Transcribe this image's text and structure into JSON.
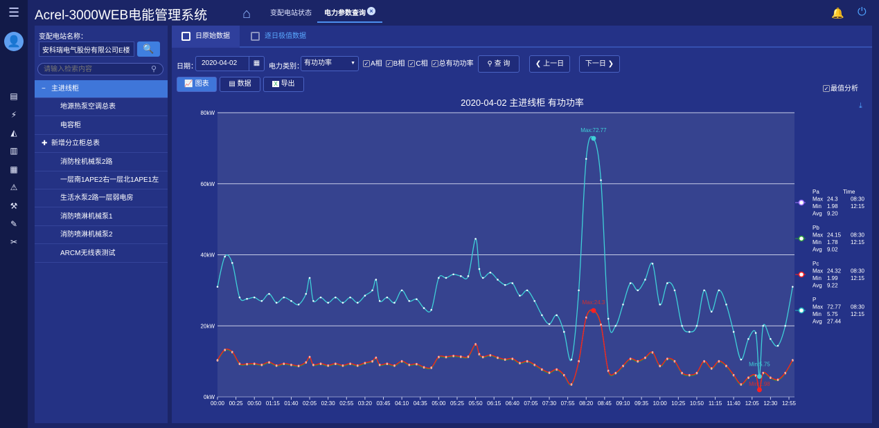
{
  "app": {
    "title": "Acrel-3000WEB电能管理系统",
    "menu_icon": "hamburger-icon"
  },
  "top_tabs": [
    {
      "label": "变配电站状态"
    },
    {
      "label": "电力参数查询",
      "active": true
    }
  ],
  "left": {
    "station_label": "变配电站名称：",
    "station_value": "安科瑞电气股份有限公司E楼",
    "search_placeholder": "请输入检索内容",
    "tree": [
      {
        "label": "主进线柜",
        "prefix": "−",
        "selected": true
      },
      {
        "label": "地源热泵空调总表"
      },
      {
        "label": "电容柜"
      },
      {
        "label": "新增分立柜总表",
        "prefix": "✚"
      },
      {
        "label": "消防栓机械泵2路"
      },
      {
        "label": "一层南1APE2右一层北1APE1左"
      },
      {
        "label": "生活水泵2路一层弱电房"
      },
      {
        "label": "消防喷淋机械泵1"
      },
      {
        "label": "消防喷淋机械泵2"
      },
      {
        "label": "ARCM无线表测试"
      }
    ]
  },
  "subtabs": [
    {
      "label": "日原始数据",
      "active": true
    },
    {
      "label": "逐日极值数据"
    }
  ],
  "filters": {
    "date_label": "日期：",
    "date_value": "2020-04-02",
    "type_label": "电力类别：",
    "type_value": "有功功率",
    "checks": [
      {
        "label": "A相",
        "checked": true
      },
      {
        "label": "B相",
        "checked": true
      },
      {
        "label": "C相",
        "checked": true
      },
      {
        "label": "总有功功率",
        "checked": true
      }
    ],
    "query": "查 询",
    "prev": "上一日",
    "next": "下一日"
  },
  "views": {
    "chart": "图表",
    "data": "数据",
    "export": "导出",
    "extreme": "最值分析",
    "extreme_checked": true
  },
  "colors": {
    "P": "#3fd0d8",
    "Pa": "#c48cff",
    "Pb": "#2c9a3c",
    "Pc": "#ff1a1a",
    "plot_bg": "#36438f"
  },
  "chart_data": {
    "type": "line",
    "title": "2020-04-02  主进线柜  有功功率",
    "ylim": [
      0,
      80
    ],
    "yticks": [
      "0kW",
      "20kW",
      "40kW",
      "60kW",
      "80kW"
    ],
    "xticks": [
      "00:00",
      "00:25",
      "00:50",
      "01:15",
      "01:40",
      "02:05",
      "02:30",
      "02:55",
      "03:20",
      "03:45",
      "04:10",
      "04:35",
      "05:00",
      "05:25",
      "05:50",
      "06:15",
      "06:40",
      "07:05",
      "07:30",
      "07:55",
      "08:20",
      "08:45",
      "09:10",
      "09:35",
      "10:00",
      "10:25",
      "10:50",
      "11:15",
      "11:40",
      "12:05",
      "12:30",
      "12:55"
    ],
    "x": [
      "00:00",
      "00:10",
      "00:20",
      "00:30",
      "00:40",
      "00:50",
      "01:00",
      "01:10",
      "01:20",
      "01:30",
      "01:40",
      "01:50",
      "02:00",
      "02:05",
      "02:10",
      "02:20",
      "02:30",
      "02:40",
      "02:50",
      "03:00",
      "03:10",
      "03:20",
      "03:30",
      "03:35",
      "03:40",
      "03:50",
      "04:00",
      "04:10",
      "04:20",
      "04:30",
      "04:40",
      "04:50",
      "05:00",
      "05:10",
      "05:20",
      "05:30",
      "05:40",
      "05:50",
      "05:55",
      "06:00",
      "06:10",
      "06:20",
      "06:30",
      "06:40",
      "06:50",
      "07:00",
      "07:10",
      "07:20",
      "07:30",
      "07:40",
      "07:50",
      "08:00",
      "08:10",
      "08:20",
      "08:30",
      "08:40",
      "08:50",
      "09:00",
      "09:10",
      "09:20",
      "09:30",
      "09:40",
      "09:50",
      "10:00",
      "10:10",
      "10:20",
      "10:30",
      "10:40",
      "10:50",
      "11:00",
      "11:10",
      "11:20",
      "11:30",
      "11:40",
      "11:50",
      "12:00",
      "12:10",
      "12:15",
      "12:20",
      "12:30",
      "12:40",
      "12:50",
      "13:00"
    ],
    "series": [
      {
        "name": "P",
        "values": [
          31,
          39.5,
          37.7,
          28,
          27.6,
          28,
          27,
          29,
          26.5,
          28,
          27,
          26,
          29,
          33.5,
          27,
          28,
          26.5,
          28,
          26.5,
          28,
          26.5,
          28.5,
          30,
          33,
          27,
          28,
          26.5,
          30,
          27,
          27.5,
          25,
          24.5,
          33.5,
          33.5,
          34.5,
          34,
          34,
          44.5,
          36,
          33.5,
          35,
          33,
          31.5,
          32,
          28.5,
          30,
          27,
          23,
          20.5,
          23,
          18.3,
          10.5,
          30,
          67,
          72.77,
          61,
          22,
          20,
          26,
          32,
          30,
          33,
          37.5,
          26,
          32,
          30,
          20,
          18.3,
          20,
          30,
          24,
          30,
          26,
          18.3,
          10.5,
          16.3,
          18,
          5.75,
          20,
          16.3,
          14.4,
          20,
          31
        ],
        "max": "72.77",
        "max_time": "08:30",
        "min": "5.75",
        "min_time": "12:15",
        "avg": "27.44"
      },
      {
        "name": "Pa",
        "values": [
          10.3,
          13.2,
          12.6,
          9.3,
          9.2,
          9.3,
          9,
          9.7,
          8.8,
          9.3,
          9,
          8.7,
          9.7,
          11.2,
          9,
          9.3,
          8.8,
          9.3,
          8.8,
          9.3,
          8.8,
          9.5,
          10,
          11,
          9,
          9.3,
          8.8,
          10,
          9,
          9.2,
          8.3,
          8.2,
          11.2,
          11.2,
          11.5,
          11.3,
          11.3,
          14.8,
          12,
          11.2,
          11.7,
          11,
          10.5,
          10.7,
          9.5,
          10,
          9,
          7.7,
          6.8,
          7.7,
          6.1,
          3.5,
          10,
          22.3,
          24.3,
          20.3,
          7.3,
          6.7,
          8.7,
          10.7,
          10,
          11,
          12.5,
          8.7,
          10.7,
          10,
          6.7,
          6.1,
          6.7,
          10,
          8,
          10,
          8.7,
          6.1,
          3.5,
          5.4,
          6,
          1.98,
          6.7,
          5.4,
          4.8,
          6.7,
          10.3
        ],
        "max": "24.3",
        "max_time": "08:30",
        "min": "1.98",
        "min_time": "12:15",
        "avg": "9.20"
      },
      {
        "name": "Pb",
        "values": [
          10.2,
          13.1,
          12.5,
          9.2,
          9.1,
          9.2,
          8.9,
          9.6,
          8.7,
          9.2,
          8.9,
          8.6,
          9.6,
          11.1,
          8.9,
          9.2,
          8.7,
          9.2,
          8.7,
          9.2,
          8.7,
          9.4,
          9.9,
          10.9,
          8.9,
          9.2,
          8.7,
          9.9,
          8.9,
          9.1,
          8.2,
          8.1,
          11.1,
          11.1,
          11.4,
          11.2,
          11.2,
          14.7,
          11.9,
          11.1,
          11.6,
          10.9,
          10.4,
          10.6,
          9.4,
          9.9,
          8.9,
          7.6,
          6.7,
          7.6,
          6,
          3.4,
          9.9,
          22.2,
          24.15,
          20.2,
          7.2,
          6.6,
          8.6,
          10.6,
          9.9,
          10.9,
          12.4,
          8.6,
          10.6,
          9.9,
          6.6,
          6,
          6.6,
          9.9,
          7.9,
          9.9,
          8.6,
          6,
          3.4,
          5.3,
          5.9,
          1.78,
          6.6,
          5.3,
          4.7,
          6.6,
          10.2
        ],
        "max": "24.15",
        "max_time": "08:30",
        "min": "1.78",
        "min_time": "12:15",
        "avg": "9.02"
      },
      {
        "name": "Pc",
        "values": [
          10.4,
          13.3,
          12.7,
          9.4,
          9.3,
          9.4,
          9.1,
          9.8,
          8.9,
          9.4,
          9.1,
          8.8,
          9.8,
          11.3,
          9.1,
          9.4,
          8.9,
          9.4,
          8.9,
          9.4,
          8.9,
          9.6,
          10.1,
          11.1,
          9.1,
          9.4,
          8.9,
          10.1,
          9.1,
          9.3,
          8.4,
          8.3,
          11.3,
          11.3,
          11.6,
          11.4,
          11.4,
          14.9,
          12.1,
          11.3,
          11.8,
          11.1,
          10.6,
          10.8,
          9.6,
          10.1,
          9.1,
          7.8,
          6.9,
          7.8,
          6.2,
          3.6,
          10.1,
          22.4,
          24.32,
          20.4,
          7.4,
          6.8,
          8.8,
          10.8,
          10.1,
          11.1,
          12.6,
          8.8,
          10.8,
          10.1,
          6.8,
          6.2,
          6.8,
          10.1,
          8.1,
          10.1,
          8.8,
          6.2,
          3.6,
          5.5,
          6.1,
          1.99,
          6.8,
          5.5,
          4.9,
          6.8,
          10.4
        ],
        "max": "24.32",
        "max_time": "08:30",
        "min": "1.99",
        "min_time": "12:15",
        "avg": "9.22"
      }
    ],
    "annotations": [
      {
        "series": "P",
        "label": "Max:72.77"
      },
      {
        "series": "P",
        "label": "Min:5.75"
      },
      {
        "series": "Pa",
        "label": "Max:24.3"
      },
      {
        "series": "Pa",
        "label": "Min:1.98"
      }
    ],
    "legend": {
      "placement": "right",
      "time_header": "Time",
      "max_label": "Max",
      "min_label": "Min",
      "avg_label": "Avg"
    },
    "grid": true
  }
}
